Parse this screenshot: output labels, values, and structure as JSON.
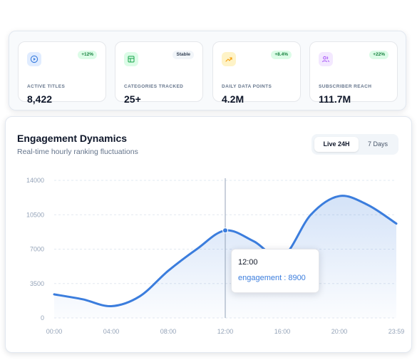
{
  "stats": [
    {
      "label": "ACTIVE TITLES",
      "value": "8,422",
      "badge": "+12%",
      "icon": "play-circle-icon",
      "tone": "blue"
    },
    {
      "label": "CATEGORIES TRACKED",
      "value": "25+",
      "badge": "Stable",
      "icon": "table-icon",
      "tone": "green"
    },
    {
      "label": "DAILY DATA POINTS",
      "value": "4.2M",
      "badge": "+8.4%",
      "icon": "trending-up-icon",
      "tone": "orange"
    },
    {
      "label": "SUBSCRIBER REACH",
      "value": "111.7M",
      "badge": "+22%",
      "icon": "users-icon",
      "tone": "purple"
    }
  ],
  "colors": {
    "accent": "#3b7ddd",
    "badge_green_bg": "#dcfce7",
    "badge_green_text": "#15803d",
    "badge_neutral_bg": "#f1f5f9",
    "badge_neutral_text": "#334155"
  },
  "chart_panel": {
    "title": "Engagement Dynamics",
    "subtitle": "Real-time hourly ranking fluctuations",
    "toggle": {
      "active": "Live 24H",
      "inactive": "7 Days"
    }
  },
  "tooltip": {
    "time": "12:00",
    "value_text": "engagement : 8900"
  },
  "chart_data": {
    "type": "area",
    "x": [
      "00:00",
      "02:00",
      "04:00",
      "06:00",
      "08:00",
      "10:00",
      "12:00",
      "14:00",
      "16:00",
      "18:00",
      "20:00",
      "22:00",
      "23:59"
    ],
    "series": [
      {
        "values": [
          2400,
          1900,
          1200,
          2200,
          4800,
          7000,
          8900,
          7800,
          6200,
          10500,
          12400,
          11500,
          9600
        ]
      }
    ],
    "x_tick_labels": [
      "00:00",
      "04:00",
      "08:00",
      "12:00",
      "16:00",
      "20:00",
      "23:59"
    ],
    "y_tick_labels": [
      "0",
      "3500",
      "7000",
      "10500",
      "14000"
    ],
    "ylim": [
      0,
      14000
    ],
    "grid": "horizontal-dashed",
    "highlight": {
      "x": "12:00",
      "y": 8900
    }
  }
}
